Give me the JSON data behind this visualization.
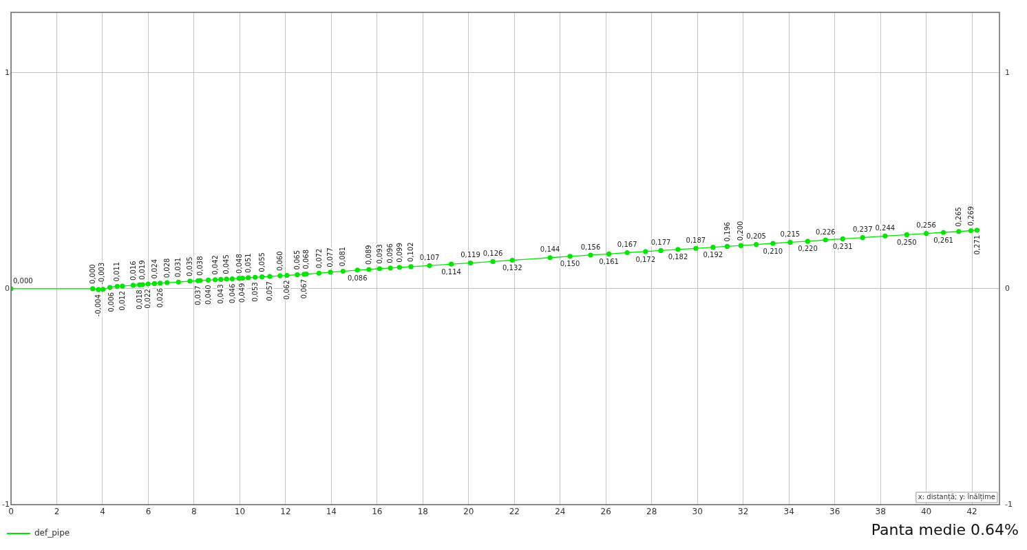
{
  "chart_data": {
    "type": "line",
    "x": [
      0,
      3.57,
      3.82,
      4.02,
      4.32,
      4.64,
      4.87,
      5.34,
      5.62,
      5.75,
      5.99,
      6.27,
      6.52,
      6.82,
      7.32,
      7.82,
      8.17,
      8.27,
      8.62,
      8.92,
      9.17,
      9.42,
      9.67,
      9.97,
      10.12,
      10.37,
      10.67,
      10.97,
      11.31,
      11.76,
      12.06,
      12.51,
      12.81,
      12.91,
      13.46,
      13.96,
      14.51,
      15.14,
      15.64,
      16.11,
      16.58,
      16.98,
      17.48,
      18.29,
      19.24,
      20.08,
      21.06,
      21.91,
      23.56,
      24.43,
      25.33,
      26.13,
      26.93,
      27.73,
      28.4,
      29.15,
      29.93,
      30.68,
      31.3,
      31.9,
      32.57,
      33.3,
      34.05,
      34.82,
      35.6,
      36.35,
      37.22,
      38.2,
      39.15,
      40,
      40.75,
      41.42,
      41.95,
      42.22
    ],
    "series": [
      {
        "name": "def_pipe",
        "color": "#00e600",
        "values": [
          0,
          0,
          -0.004,
          -0.003,
          0.006,
          0.011,
          0.012,
          0.016,
          0.018,
          0.019,
          0.022,
          0.024,
          0.026,
          0.028,
          0.031,
          0.035,
          0.037,
          0.038,
          0.04,
          0.042,
          0.043,
          0.045,
          0.046,
          0.048,
          0.049,
          0.051,
          0.053,
          0.055,
          0.057,
          0.06,
          0.062,
          0.065,
          0.067,
          0.068,
          0.072,
          0.077,
          0.081,
          0.086,
          0.089,
          0.093,
          0.096,
          0.099,
          0.102,
          0.107,
          0.114,
          0.119,
          0.126,
          0.132,
          0.144,
          0.15,
          0.156,
          0.161,
          0.167,
          0.172,
          0.177,
          0.182,
          0.187,
          0.192,
          0.196,
          0.2,
          0.205,
          0.21,
          0.215,
          0.22,
          0.226,
          0.231,
          0.237,
          0.244,
          0.25,
          0.256,
          0.261,
          0.265,
          0.269,
          0.271
        ],
        "value_labels": [
          "0,000",
          "0,000",
          "-0,004",
          "-0,003",
          "0,006",
          "0,011",
          "0,012",
          "0,016",
          "0,018",
          "0,019",
          "0,022",
          "0,024",
          "0,026",
          "0,028",
          "0,031",
          "0,035",
          "0,037",
          "0,038",
          "0,040",
          "0,042",
          "0,043",
          "0,045",
          "0,046",
          "0,048",
          "0,049",
          "0,051",
          "0,053",
          "0,055",
          "0,057",
          "0,060",
          "0,062",
          "0,065",
          "0,067",
          "0,068",
          "0,072",
          "0,077",
          "0,081",
          "0,086",
          "0,089",
          "0,093",
          "0,096",
          "0,099",
          "0,102",
          "0,107",
          "0,114",
          "0,119",
          "0,126",
          "0,132",
          "0,144",
          "0,150",
          "0,156",
          "0,161",
          "0,167",
          "0,172",
          "0,177",
          "0,182",
          "0,187",
          "0,192",
          "0,196",
          "0,200",
          "0,205",
          "0,210",
          "0,215",
          "0,220",
          "0,226",
          "0,231",
          "0,237",
          "0,244",
          "0,250",
          "0,256",
          "0,261",
          "0,265",
          "0,269",
          "0,271"
        ]
      }
    ],
    "xlim": [
      0,
      43.2
    ],
    "xticks": [
      0,
      2,
      4,
      6,
      8,
      10,
      12,
      14,
      16,
      18,
      20,
      22,
      24,
      26,
      28,
      30,
      32,
      34,
      36,
      38,
      40,
      42
    ],
    "ylim": [
      -1,
      1.28
    ],
    "yticks": [
      -1,
      0,
      1
    ],
    "y2lim": [
      -1,
      1.28
    ],
    "y2ticks": [
      -1,
      0,
      1
    ],
    "grid": true,
    "legend": "bottom left",
    "marker": "circle",
    "annotations": [
      "x: distanță; y: înălțime",
      "Panta medie 0.64%"
    ]
  }
}
